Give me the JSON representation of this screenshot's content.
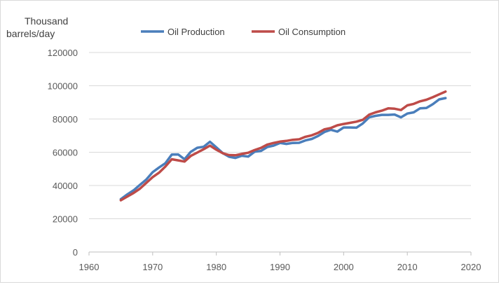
{
  "chart_data": {
    "type": "line",
    "title": "",
    "ylabel_lines": [
      "Thousand",
      "barrels/day"
    ],
    "xlabel": "",
    "xlim": [
      1960,
      2020
    ],
    "ylim": [
      0,
      120000
    ],
    "xticks": [
      1960,
      1970,
      1980,
      1990,
      2000,
      2010,
      2020
    ],
    "yticks": [
      0,
      20000,
      40000,
      60000,
      80000,
      100000,
      120000
    ],
    "grid": "horizontal",
    "legend": "top",
    "x": [
      1965,
      1966,
      1967,
      1968,
      1969,
      1970,
      1971,
      1972,
      1973,
      1974,
      1975,
      1976,
      1977,
      1978,
      1979,
      1980,
      1981,
      1982,
      1983,
      1984,
      1985,
      1986,
      1987,
      1988,
      1989,
      1990,
      1991,
      1992,
      1993,
      1994,
      1995,
      1996,
      1997,
      1998,
      1999,
      2000,
      2001,
      2002,
      2003,
      2004,
      2005,
      2006,
      2007,
      2008,
      2009,
      2010,
      2011,
      2012,
      2013,
      2014,
      2015,
      2016
    ],
    "series": [
      {
        "name": "Oil Production",
        "color": "#4a7ebb",
        "values": [
          31800,
          34600,
          37100,
          40400,
          43600,
          48000,
          50800,
          53400,
          58600,
          58700,
          55800,
          60300,
          62700,
          63300,
          66300,
          62900,
          59500,
          57300,
          56600,
          57900,
          57400,
          60300,
          60800,
          63100,
          64000,
          65600,
          65000,
          65600,
          65700,
          67100,
          68000,
          69800,
          72200,
          73500,
          72400,
          74900,
          74900,
          74800,
          77300,
          81000,
          81900,
          82500,
          82500,
          82700,
          81000,
          83300,
          84000,
          86400,
          86600,
          88900,
          91800,
          92600
        ]
      },
      {
        "name": "Oil Consumption",
        "color": "#be4b48",
        "values": [
          31100,
          33300,
          35500,
          38100,
          41600,
          45000,
          47700,
          51400,
          55800,
          55100,
          54400,
          57800,
          59800,
          61800,
          64000,
          61500,
          59400,
          58300,
          58200,
          59000,
          59700,
          61300,
          62600,
          64600,
          65600,
          66400,
          66800,
          67500,
          67800,
          69300,
          70200,
          71700,
          73800,
          74600,
          76200,
          77000,
          77700,
          78400,
          79500,
          82600,
          84000,
          85000,
          86400,
          86200,
          85400,
          88200,
          89100,
          90600,
          91600,
          93100,
          94800,
          96500
        ]
      }
    ]
  }
}
